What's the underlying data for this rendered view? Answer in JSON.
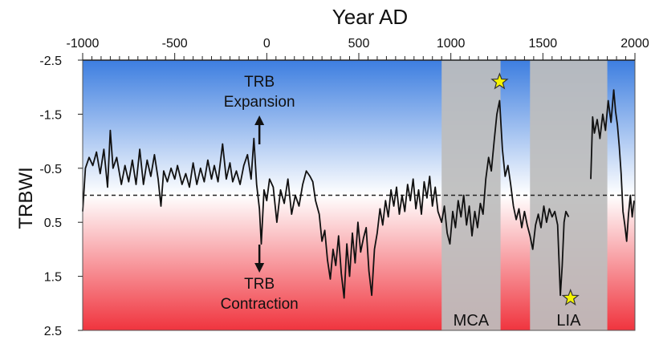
{
  "chart_data": {
    "type": "line",
    "title": "",
    "xlabel": "Year AD",
    "ylabel": "TRBWI",
    "xlim": [
      -1000,
      2000
    ],
    "ylim": [
      2.5,
      -2.5
    ],
    "y_axis_inverted": true,
    "x_axis_position": "top",
    "x_ticks": [
      -1000,
      -500,
      0,
      500,
      1000,
      1500,
      2000
    ],
    "x_tick_labels": [
      "-1000",
      "-500",
      "0",
      "500",
      "1000",
      "1500",
      "2000"
    ],
    "y_ticks": [
      -2.5,
      -1.5,
      -0.5,
      0.5,
      1.5,
      2.5
    ],
    "y_tick_labels": [
      "-2.5",
      "-1.5",
      "-0.5",
      "0.5",
      "1.5",
      "2.5"
    ],
    "reference_line": {
      "y": 0,
      "style": "dashed"
    },
    "background_gradient": {
      "top_color": "#3d7ee0",
      "bottom_color": "#f0343e",
      "mid_color": "#ffffff"
    },
    "shaded_periods": [
      {
        "label": "MCA",
        "x_start": 950,
        "x_end": 1270,
        "color": "#bdbdbd"
      },
      {
        "label": "LIA",
        "x_start": 1430,
        "x_end": 1850,
        "color": "#bdbdbd"
      }
    ],
    "annotations": [
      {
        "lines": [
          "TRB",
          "Expansion"
        ],
        "x": -40,
        "y": -1.95,
        "arrow": "up"
      },
      {
        "lines": [
          "TRB",
          "Contraction"
        ],
        "x": -40,
        "y": 1.85,
        "arrow": "down"
      }
    ],
    "star_markers": [
      {
        "x": 1265,
        "y": -2.1,
        "color": "#f5f500"
      },
      {
        "x": 1650,
        "y": 1.9,
        "color": "#f5f500"
      }
    ],
    "series": [
      {
        "color": "#111111",
        "segments": [
          [
            [
              -1000,
              0.3
            ],
            [
              -985,
              -0.5
            ],
            [
              -965,
              -0.7
            ],
            [
              -945,
              -0.55
            ],
            [
              -925,
              -0.8
            ],
            [
              -905,
              -0.4
            ],
            [
              -885,
              -0.85
            ],
            [
              -865,
              -0.15
            ],
            [
              -850,
              -1.2
            ],
            [
              -835,
              -0.5
            ],
            [
              -815,
              -0.7
            ],
            [
              -790,
              -0.2
            ],
            [
              -770,
              -0.55
            ],
            [
              -750,
              -0.25
            ],
            [
              -730,
              -0.65
            ],
            [
              -710,
              -0.2
            ],
            [
              -690,
              -0.85
            ],
            [
              -670,
              -0.2
            ],
            [
              -650,
              -0.65
            ],
            [
              -630,
              -0.35
            ],
            [
              -610,
              -0.75
            ],
            [
              -590,
              -0.3
            ],
            [
              -575,
              0.2
            ],
            [
              -560,
              -0.45
            ],
            [
              -540,
              -0.25
            ],
            [
              -520,
              -0.5
            ],
            [
              -500,
              -0.3
            ],
            [
              -485,
              -0.55
            ],
            [
              -460,
              -0.2
            ],
            [
              -440,
              -0.4
            ],
            [
              -420,
              -0.15
            ],
            [
              -400,
              -0.6
            ],
            [
              -380,
              -0.2
            ],
            [
              -360,
              -0.5
            ],
            [
              -340,
              -0.25
            ],
            [
              -320,
              -0.65
            ],
            [
              -300,
              -0.3
            ],
            [
              -285,
              -0.55
            ],
            [
              -265,
              -0.25
            ],
            [
              -240,
              -0.95
            ],
            [
              -220,
              -0.3
            ],
            [
              -200,
              -0.6
            ],
            [
              -185,
              -0.25
            ],
            [
              -165,
              -0.45
            ],
            [
              -145,
              -0.2
            ],
            [
              -125,
              -0.55
            ],
            [
              -105,
              -0.75
            ],
            [
              -85,
              -0.3
            ],
            [
              -70,
              -1.05
            ],
            [
              -55,
              -0.2
            ],
            [
              -40,
              0.25
            ],
            [
              -30,
              0.9
            ],
            [
              -15,
              -0.1
            ],
            [
              0,
              0.1
            ],
            [
              15,
              -0.3
            ],
            [
              35,
              -0.15
            ],
            [
              55,
              0.5
            ],
            [
              75,
              -0.1
            ],
            [
              95,
              0.15
            ],
            [
              115,
              -0.3
            ],
            [
              135,
              0.35
            ],
            [
              155,
              0.0
            ],
            [
              175,
              0.2
            ],
            [
              195,
              -0.2
            ],
            [
              215,
              -0.45
            ],
            [
              235,
              -0.35
            ],
            [
              250,
              -0.25
            ],
            [
              265,
              0.1
            ],
            [
              285,
              0.35
            ],
            [
              300,
              0.85
            ],
            [
              315,
              0.65
            ],
            [
              330,
              1.2
            ],
            [
              345,
              1.55
            ],
            [
              360,
              1.0
            ],
            [
              375,
              1.3
            ],
            [
              390,
              0.75
            ],
            [
              405,
              1.45
            ],
            [
              420,
              1.9
            ],
            [
              435,
              0.9
            ],
            [
              450,
              1.5
            ],
            [
              465,
              0.7
            ],
            [
              480,
              1.25
            ],
            [
              495,
              0.5
            ],
            [
              510,
              1.05
            ],
            [
              525,
              0.8
            ],
            [
              540,
              0.6
            ],
            [
              555,
              1.4
            ],
            [
              570,
              1.85
            ],
            [
              585,
              1.0
            ],
            [
              600,
              0.7
            ],
            [
              615,
              0.25
            ],
            [
              630,
              0.55
            ],
            [
              645,
              0.1
            ],
            [
              660,
              0.4
            ],
            [
              675,
              -0.1
            ],
            [
              690,
              0.2
            ],
            [
              705,
              -0.15
            ],
            [
              720,
              0.35
            ],
            [
              735,
              0.0
            ],
            [
              750,
              0.3
            ],
            [
              765,
              -0.2
            ],
            [
              780,
              0.1
            ],
            [
              795,
              -0.3
            ],
            [
              810,
              0.25
            ],
            [
              825,
              -0.1
            ],
            [
              840,
              0.35
            ],
            [
              855,
              -0.25
            ],
            [
              870,
              0.05
            ],
            [
              885,
              -0.35
            ],
            [
              900,
              0.2
            ],
            [
              915,
              -0.15
            ],
            [
              930,
              0.3
            ],
            [
              950,
              0.5
            ],
            [
              965,
              0.2
            ],
            [
              980,
              0.7
            ],
            [
              995,
              0.9
            ],
            [
              1010,
              0.3
            ],
            [
              1025,
              0.6
            ],
            [
              1040,
              0.1
            ],
            [
              1055,
              0.4
            ],
            [
              1070,
              0.0
            ],
            [
              1085,
              0.55
            ],
            [
              1100,
              0.2
            ],
            [
              1115,
              0.75
            ],
            [
              1130,
              0.3
            ],
            [
              1145,
              0.6
            ],
            [
              1160,
              0.15
            ],
            [
              1175,
              0.35
            ],
            [
              1190,
              -0.3
            ],
            [
              1205,
              -0.7
            ],
            [
              1220,
              -0.45
            ],
            [
              1235,
              -1.0
            ],
            [
              1250,
              -1.5
            ],
            [
              1265,
              -1.75
            ],
            [
              1280,
              -0.85
            ],
            [
              1295,
              -0.35
            ],
            [
              1310,
              -0.55
            ],
            [
              1325,
              -0.2
            ],
            [
              1340,
              0.2
            ],
            [
              1355,
              0.45
            ],
            [
              1370,
              0.25
            ],
            [
              1385,
              0.6
            ],
            [
              1400,
              0.3
            ],
            [
              1415,
              0.55
            ],
            [
              1430,
              0.75
            ],
            [
              1445,
              1.0
            ],
            [
              1460,
              0.55
            ],
            [
              1475,
              0.35
            ],
            [
              1490,
              0.6
            ],
            [
              1505,
              0.2
            ],
            [
              1520,
              0.5
            ],
            [
              1535,
              0.25
            ],
            [
              1550,
              0.4
            ],
            [
              1565,
              0.3
            ],
            [
              1580,
              0.55
            ],
            [
              1595,
              1.85
            ],
            [
              1605,
              1.3
            ],
            [
              1615,
              0.5
            ],
            [
              1625,
              0.3
            ],
            [
              1640,
              0.4
            ]
          ],
          [
            [
              1760,
              -0.3
            ],
            [
              1770,
              -1.45
            ],
            [
              1780,
              -1.15
            ],
            [
              1795,
              -1.4
            ],
            [
              1810,
              -1.05
            ],
            [
              1825,
              -1.5
            ],
            [
              1840,
              -1.2
            ],
            [
              1855,
              -1.75
            ],
            [
              1870,
              -1.35
            ],
            [
              1885,
              -1.95
            ],
            [
              1895,
              -1.55
            ],
            [
              1905,
              -1.3
            ],
            [
              1915,
              -0.9
            ],
            [
              1925,
              -0.4
            ],
            [
              1935,
              0.3
            ],
            [
              1945,
              0.55
            ],
            [
              1955,
              0.85
            ],
            [
              1965,
              0.35
            ],
            [
              1975,
              0.0
            ],
            [
              1985,
              0.4
            ],
            [
              1995,
              0.1
            ]
          ]
        ]
      }
    ]
  }
}
